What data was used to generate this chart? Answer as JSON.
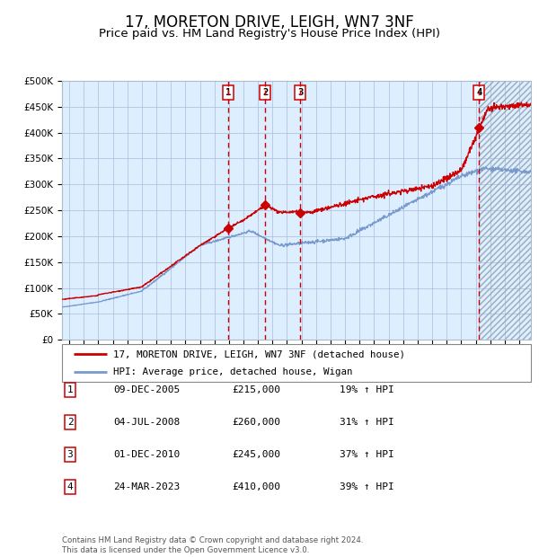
{
  "title": "17, MORETON DRIVE, LEIGH, WN7 3NF",
  "subtitle": "Price paid vs. HM Land Registry's House Price Index (HPI)",
  "legend_line1": "17, MORETON DRIVE, LEIGH, WN7 3NF (detached house)",
  "legend_line2": "HPI: Average price, detached house, Wigan",
  "red_line_color": "#cc0000",
  "blue_line_color": "#7799cc",
  "bg_color": "#ddeeff",
  "grid_color": "#aabbdd",
  "sale_points": [
    {
      "label": "1",
      "x_year": 2005.94,
      "price": 215000
    },
    {
      "label": "2",
      "x_year": 2008.51,
      "price": 260000
    },
    {
      "label": "3",
      "x_year": 2010.92,
      "price": 245000
    },
    {
      "label": "4",
      "x_year": 2023.23,
      "price": 410000
    }
  ],
  "table_rows": [
    {
      "num": "1",
      "date": "09-DEC-2005",
      "price": "£215,000",
      "pct": "19% ↑ HPI"
    },
    {
      "num": "2",
      "date": "04-JUL-2008",
      "price": "£260,000",
      "pct": "31% ↑ HPI"
    },
    {
      "num": "3",
      "date": "01-DEC-2010",
      "price": "£245,000",
      "pct": "37% ↑ HPI"
    },
    {
      "num": "4",
      "date": "24-MAR-2023",
      "price": "£410,000",
      "pct": "39% ↑ HPI"
    }
  ],
  "footer": "Contains HM Land Registry data © Crown copyright and database right 2024.\nThis data is licensed under the Open Government Licence v3.0.",
  "ylim": [
    0,
    500000
  ],
  "yticks": [
    0,
    50000,
    100000,
    150000,
    200000,
    250000,
    300000,
    350000,
    400000,
    450000,
    500000
  ],
  "xlim_start": 1994.5,
  "xlim_end": 2026.8,
  "hatch_start": 2023.23,
  "title_fontsize": 12,
  "subtitle_fontsize": 9.5
}
